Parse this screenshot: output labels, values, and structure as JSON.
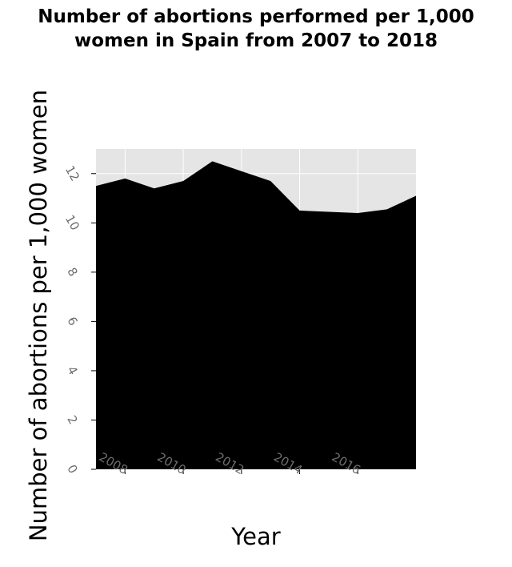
{
  "chart_data": {
    "type": "area",
    "title_lines": [
      "Number of abortions performed per 1,000",
      "women in Spain from 2007 to 2018"
    ],
    "xlabel": "Year",
    "ylabel": "Number of abortions per 1,000 women",
    "x": [
      2007,
      2008,
      2009,
      2010,
      2011,
      2012,
      2013,
      2014,
      2015,
      2016,
      2017,
      2018
    ],
    "values": [
      11.5,
      11.8,
      11.4,
      11.7,
      12.5,
      12.1,
      11.7,
      10.5,
      10.45,
      10.4,
      10.55,
      11.1
    ],
    "xlim": [
      2007,
      2018
    ],
    "ylim": [
      0,
      13
    ],
    "xticks": [
      2008,
      2010,
      2012,
      2014,
      2016
    ],
    "yticks": [
      0,
      2,
      4,
      6,
      8,
      10,
      12
    ],
    "grid": true,
    "fill_color": "#000000",
    "background_color": "#e5e5e5",
    "grid_color": "#ffffff"
  }
}
